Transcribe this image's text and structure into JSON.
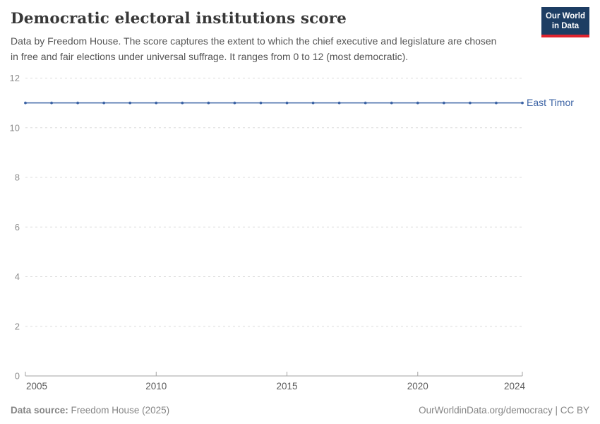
{
  "header": {
    "title": "Democratic electoral institutions score",
    "subtitle": "Data by Freedom House. The score captures the extent to which the chief executive and legislature are chosen in free and fair elections under universal suffrage. It ranges from 0 to 12 (most democratic).",
    "logo": {
      "line1": "Our World",
      "line2": "in Data",
      "bg_color": "#1d3d63",
      "stripe_color": "#e0232e"
    }
  },
  "chart_data": {
    "type": "line",
    "title": "Democratic electoral institutions score",
    "x": [
      2005,
      2006,
      2007,
      2008,
      2009,
      2010,
      2011,
      2012,
      2013,
      2014,
      2015,
      2016,
      2017,
      2018,
      2019,
      2020,
      2021,
      2022,
      2023,
      2024
    ],
    "series": [
      {
        "name": "East Timor",
        "color": "#3d64a5",
        "values": [
          11,
          11,
          11,
          11,
          11,
          11,
          11,
          11,
          11,
          11,
          11,
          11,
          11,
          11,
          11,
          11,
          11,
          11,
          11,
          11
        ]
      }
    ],
    "xlabel": "",
    "ylabel": "",
    "ylim": [
      0,
      12
    ],
    "yticks": [
      0,
      2,
      4,
      6,
      8,
      10,
      12
    ],
    "xticks": [
      2005,
      2010,
      2015,
      2020,
      2024
    ],
    "legend_position": "right-end-label",
    "grid": "horizontal-dashed",
    "colors": {
      "gridline": "#dcdcdc",
      "axis": "#a3a3a3",
      "y_tick_label": "#8e8e8e",
      "x_tick_label": "#5b5b5b"
    }
  },
  "footer": {
    "source_label": "Data source:",
    "source_value": " Freedom House (2025)",
    "right_text": "OurWorldinData.org/democracy | CC BY"
  }
}
